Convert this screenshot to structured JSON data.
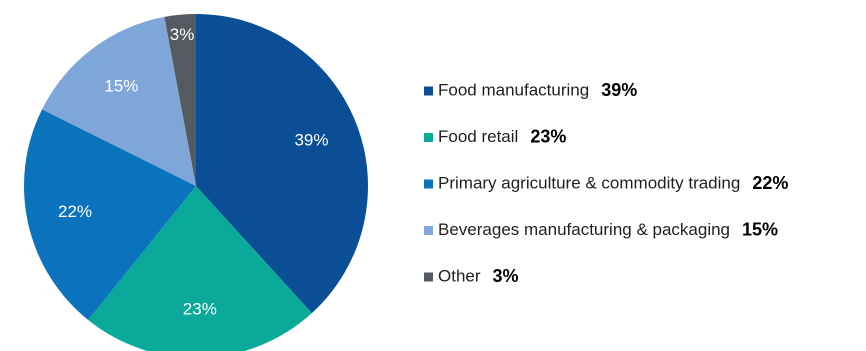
{
  "chart_data": {
    "type": "pie",
    "legend_position": "right",
    "slices": [
      {
        "label": "Food manufacturing",
        "value": 39,
        "display": "39%",
        "color": "#0a4f95"
      },
      {
        "label": "Food retail",
        "value": 23,
        "display": "23%",
        "color": "#0aa99a"
      },
      {
        "label": "Primary agriculture & commodity trading",
        "value": 22,
        "display": "22%",
        "color": "#0b73be"
      },
      {
        "label": "Beverages manufacturing & packaging",
        "value": 15,
        "display": "15%",
        "color": "#7fa6d8"
      },
      {
        "label": "Other",
        "value": 3,
        "display": "3%",
        "color": "#555a60"
      }
    ]
  }
}
